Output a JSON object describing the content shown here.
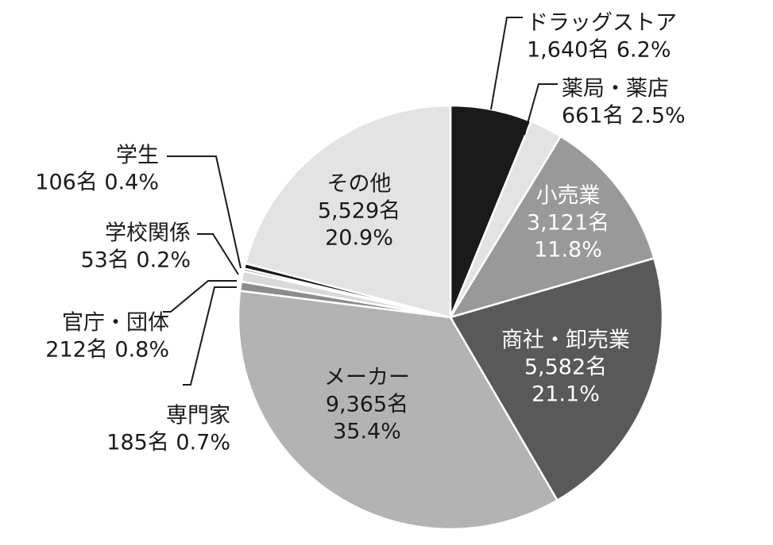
{
  "chart_data": {
    "type": "pie",
    "start": "12 o'clock",
    "direction": "clockwise",
    "slices": [
      {
        "label": "ドラッグストア",
        "count": "1,640名",
        "percent": "6.2%",
        "value": 6.2,
        "color": "#1a1a1a",
        "text_color": "#1a1a1a"
      },
      {
        "label": "薬局・薬店",
        "count": "661名",
        "percent": "2.5%",
        "value": 2.5,
        "color": "#e3e3e3",
        "text_color": "#1a1a1a"
      },
      {
        "label": "小売業",
        "count": "3,121名",
        "percent": "11.8%",
        "value": 11.8,
        "color": "#999999",
        "text_color": "#ffffff"
      },
      {
        "label": "商社・卸売業",
        "count": "5,582名",
        "percent": "21.1%",
        "value": 21.1,
        "color": "#595959",
        "text_color": "#ffffff"
      },
      {
        "label": "メーカー",
        "count": "9,365名",
        "percent": "35.4%",
        "value": 35.4,
        "color": "#b3b3b3",
        "text_color": "#1a1a1a"
      },
      {
        "label": "専門家",
        "count": "185名",
        "percent": "0.7%",
        "value": 0.7,
        "color": "#8c8c8c",
        "text_color": "#1a1a1a"
      },
      {
        "label": "官庁・団体",
        "count": "212名",
        "percent": "0.8%",
        "value": 0.8,
        "color": "#d9d9d9",
        "text_color": "#1a1a1a"
      },
      {
        "label": "学校関係",
        "count": "53名",
        "percent": "0.2%",
        "value": 0.2,
        "color": "#7f7f7f",
        "text_color": "#1a1a1a"
      },
      {
        "label": "学生",
        "count": "106名",
        "percent": "0.4%",
        "value": 0.4,
        "color": "#1a1a1a",
        "text_color": "#1a1a1a"
      },
      {
        "label": "その他",
        "count": "5,529名",
        "percent": "20.9%",
        "value": 20.9,
        "color": "#e3e3e3",
        "text_color": "#1a1a1a"
      }
    ]
  }
}
